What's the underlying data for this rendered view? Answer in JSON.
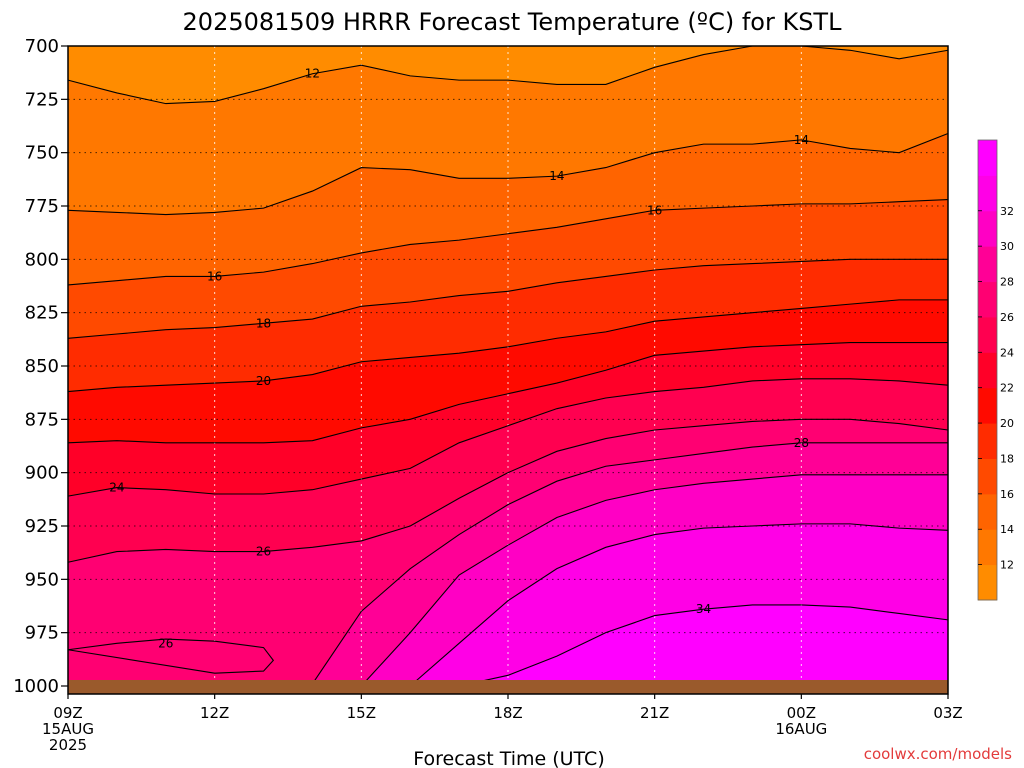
{
  "chart_data": {
    "type": "heatmap",
    "title": "2025081509 HRRR Forecast Temperature (ºC) for KSTL",
    "xlabel": "Forecast Time (UTC)",
    "credit": "coolwx.com/models",
    "y_axis": {
      "reversed": true,
      "range": [
        700,
        1000
      ],
      "ticks": [
        "700",
        "725",
        "750",
        "775",
        "800",
        "825",
        "850",
        "875",
        "900",
        "925",
        "950",
        "975",
        "1000"
      ]
    },
    "x_axis": {
      "range_hours": [
        0,
        18
      ],
      "ticks": [
        {
          "hour": 0,
          "lines": [
            "09Z",
            "15AUG",
            "2025"
          ]
        },
        {
          "hour": 3,
          "lines": [
            "12Z"
          ]
        },
        {
          "hour": 6,
          "lines": [
            "15Z"
          ]
        },
        {
          "hour": 9,
          "lines": [
            "18Z"
          ]
        },
        {
          "hour": 12,
          "lines": [
            "21Z"
          ]
        },
        {
          "hour": 15,
          "lines": [
            "00Z",
            "16AUG"
          ]
        },
        {
          "hour": 18,
          "lines": [
            "03Z"
          ]
        }
      ]
    },
    "grid": true,
    "colorbar": {
      "ticks": [
        "12",
        "14",
        "16",
        "18",
        "20",
        "22",
        "24",
        "26",
        "28",
        "30",
        "32"
      ],
      "colors": [
        "#ff8c00",
        "#ff7800",
        "#ff6400",
        "#ff4a00",
        "#ff2c00",
        "#ff0a00",
        "#ff0028",
        "#ff0050",
        "#ff0072",
        "#ff0096",
        "#ff00c4",
        "#ff00e6",
        "#ff00ff"
      ]
    },
    "x_hours": [
      0,
      1,
      2,
      3,
      4,
      5,
      6,
      7,
      8,
      9,
      10,
      11,
      12,
      13,
      14,
      15,
      16,
      17,
      18
    ],
    "contours": [
      {
        "level": 12,
        "pressure": [
          716,
          722,
          727,
          726,
          720,
          713,
          709,
          714,
          716,
          716,
          718,
          718,
          710,
          704,
          700,
          700,
          702,
          706,
          702
        ],
        "labels": [
          {
            "hour": 5,
            "text": "12"
          }
        ]
      },
      {
        "level": 14,
        "pressure": [
          777,
          778,
          779,
          778,
          776,
          768,
          757,
          758,
          762,
          762,
          761,
          757,
          750,
          746,
          746,
          744,
          748,
          750,
          741
        ],
        "labels": [
          {
            "hour": 10,
            "text": "14"
          },
          {
            "hour": 15,
            "text": "14"
          }
        ]
      },
      {
        "level": 16,
        "pressure": [
          812,
          810,
          808,
          808,
          806,
          802,
          797,
          793,
          791,
          788,
          785,
          781,
          777,
          776,
          775,
          774,
          774,
          773,
          772
        ],
        "labels": [
          {
            "hour": 3,
            "text": "16"
          },
          {
            "hour": 12,
            "text": "16"
          }
        ]
      },
      {
        "level": 18,
        "pressure": [
          837,
          835,
          833,
          832,
          830,
          828,
          822,
          820,
          817,
          815,
          811,
          808,
          805,
          803,
          802,
          801,
          800,
          800,
          800
        ],
        "labels": [
          {
            "hour": 4,
            "text": "18"
          }
        ]
      },
      {
        "level": 20,
        "pressure": [
          862,
          860,
          859,
          858,
          857,
          854,
          848,
          846,
          844,
          841,
          837,
          834,
          829,
          827,
          825,
          823,
          821,
          819,
          819
        ],
        "labels": [
          {
            "hour": 4,
            "text": "20"
          }
        ]
      },
      {
        "level": 22,
        "pressure": [
          886,
          885,
          886,
          886,
          886,
          885,
          879,
          875,
          868,
          863,
          858,
          852,
          845,
          843,
          841,
          840,
          839,
          839,
          839
        ],
        "labels": []
      },
      {
        "level": 24,
        "pressure": [
          911,
          907,
          908,
          910,
          910,
          908,
          903,
          898,
          886,
          878,
          870,
          865,
          862,
          860,
          857,
          856,
          856,
          857,
          859
        ],
        "labels": [
          {
            "hour": 1,
            "text": "24"
          }
        ]
      },
      {
        "level": 26,
        "pressure": [
          942,
          937,
          936,
          937,
          937,
          935,
          932,
          925,
          912,
          900,
          890,
          884,
          880,
          878,
          876,
          875,
          875,
          877,
          880
        ],
        "labels": [
          {
            "hour": 4,
            "text": "26"
          }
        ]
      },
      {
        "level": 28,
        "pressure": [
          1000,
          1000,
          1000,
          1000,
          1000,
          999,
          965,
          945,
          929,
          915,
          904,
          897,
          894,
          891,
          888,
          886,
          886,
          886,
          886
        ],
        "labels": [
          {
            "hour": 15,
            "text": "28"
          }
        ]
      },
      {
        "level": 30,
        "pressure": [
          1000,
          1000,
          1000,
          1000,
          1000,
          1000,
          1000,
          975,
          948,
          934,
          921,
          913,
          908,
          905,
          903,
          901,
          901,
          901,
          901
        ],
        "labels": []
      },
      {
        "level": 32,
        "pressure": [
          1000,
          1000,
          1000,
          1000,
          1000,
          1000,
          1000,
          1000,
          980,
          960,
          945,
          935,
          929,
          926,
          925,
          924,
          924,
          926,
          927
        ],
        "labels": []
      },
      {
        "level": 34,
        "pressure": [
          1000,
          1000,
          1000,
          1000,
          1000,
          1000,
          1000,
          1000,
          1000,
          995,
          986,
          975,
          967,
          964,
          962,
          962,
          963,
          966,
          969
        ],
        "labels": [
          {
            "hour": 13,
            "text": "34"
          }
        ]
      }
    ],
    "closed_contour_26_low": {
      "level": 26,
      "points": [
        [
          0,
          983
        ],
        [
          1,
          980
        ],
        [
          2,
          978
        ],
        [
          3,
          979
        ],
        [
          4,
          982
        ],
        [
          4.2,
          988
        ],
        [
          4,
          993
        ],
        [
          3,
          994
        ]
      ],
      "labels": [
        {
          "hour": 2,
          "text": "26"
        }
      ]
    }
  }
}
